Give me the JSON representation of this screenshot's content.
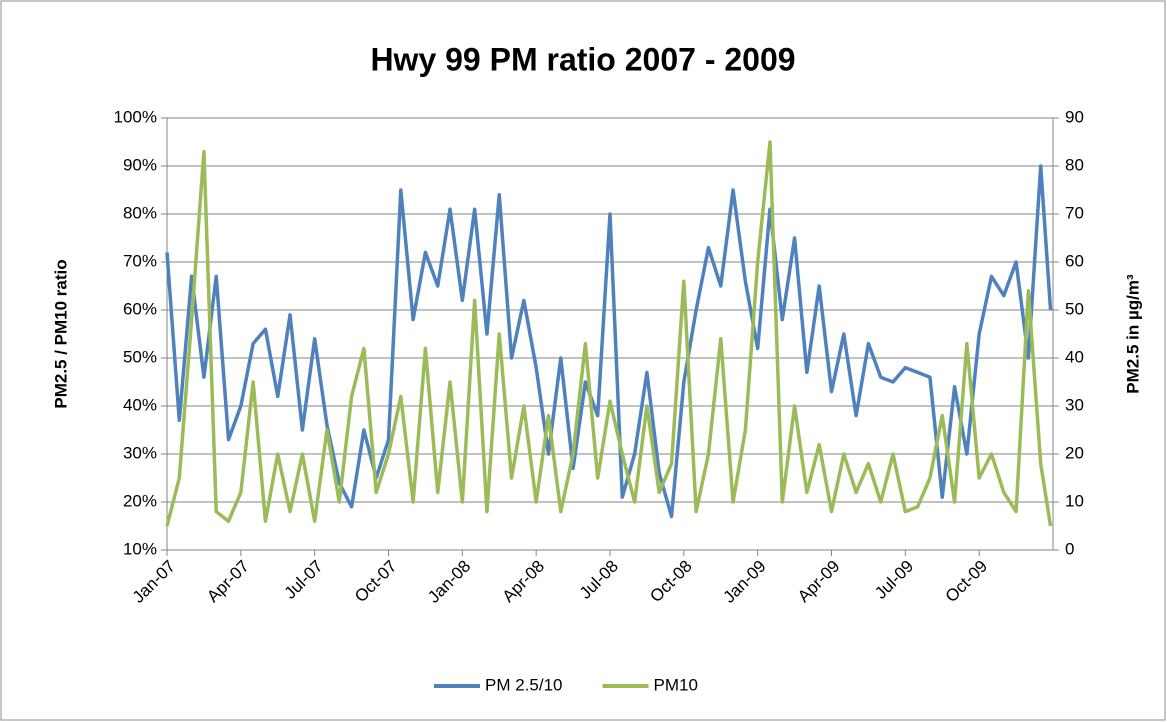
{
  "chart_data": {
    "type": "line",
    "title": "Hwy 99 PM ratio 2007 - 2009",
    "ylabel": "PM2.5 / PM10 ratio",
    "y2label": "PM2.5 in µg/m³",
    "x": [
      0,
      0.5,
      1,
      1.5,
      2,
      2.5,
      3,
      3.5,
      4,
      4.5,
      5,
      5.5,
      6,
      6.5,
      7,
      7.5,
      8,
      8.5,
      9,
      9.5,
      10,
      10.5,
      11,
      11.5,
      12,
      12.5,
      13,
      13.5,
      14,
      14.5,
      15,
      15.5,
      16,
      16.5,
      17,
      17.5,
      18,
      18.5,
      19,
      19.5,
      20,
      20.5,
      21,
      21.5,
      22,
      22.5,
      23,
      23.5,
      24,
      24.5,
      25,
      25.5,
      26,
      26.5,
      27,
      27.5,
      28,
      28.5,
      29,
      29.5,
      30,
      30.5,
      31,
      31.5,
      32,
      32.5,
      33,
      33.5,
      34,
      34.5,
      35,
      35.5,
      35.9
    ],
    "xlim": [
      0,
      36
    ],
    "xticks": [
      {
        "value": 0,
        "label": "Jan-07"
      },
      {
        "value": 3,
        "label": "Apr-07"
      },
      {
        "value": 6,
        "label": "Jul-07"
      },
      {
        "value": 9,
        "label": "Oct-07"
      },
      {
        "value": 12,
        "label": "Jan-08"
      },
      {
        "value": 15,
        "label": "Apr-08"
      },
      {
        "value": 18,
        "label": "Jul-08"
      },
      {
        "value": 21,
        "label": "Oct-08"
      },
      {
        "value": 24,
        "label": "Jan-09"
      },
      {
        "value": 27,
        "label": "Apr-09"
      },
      {
        "value": 30,
        "label": "Jul-09"
      },
      {
        "value": 33,
        "label": "Oct-09"
      }
    ],
    "ylim": [
      10,
      100
    ],
    "yticks": [
      {
        "value": 10,
        "label": "10%"
      },
      {
        "value": 20,
        "label": "20%"
      },
      {
        "value": 30,
        "label": "30%"
      },
      {
        "value": 40,
        "label": "40%"
      },
      {
        "value": 50,
        "label": "50%"
      },
      {
        "value": 60,
        "label": "60%"
      },
      {
        "value": 70,
        "label": "70%"
      },
      {
        "value": 80,
        "label": "80%"
      },
      {
        "value": 90,
        "label": "90%"
      },
      {
        "value": 100,
        "label": "100%"
      }
    ],
    "y2lim": [
      0,
      90
    ],
    "y2ticks": [
      0,
      10,
      20,
      30,
      40,
      50,
      60,
      70,
      80,
      90
    ],
    "grid": true,
    "legend": "bottom",
    "series": [
      {
        "name": "PM 2.5/10",
        "color": "#4f81bd",
        "values": [
          72,
          37,
          67,
          46,
          67,
          33,
          40,
          53,
          56,
          42,
          59,
          35,
          54,
          36,
          24,
          19,
          35,
          25,
          33,
          85,
          58,
          72,
          65,
          81,
          62,
          81,
          55,
          84,
          50,
          62,
          48,
          30,
          50,
          27,
          45,
          38,
          80,
          21,
          30,
          47,
          26,
          17,
          45,
          60,
          73,
          65,
          85,
          66,
          52,
          81,
          58,
          75,
          47,
          65,
          43,
          55,
          38,
          53,
          46,
          45,
          48,
          47,
          46,
          21,
          44,
          30,
          55,
          67,
          63,
          70,
          50,
          90,
          60
        ]
      },
      {
        "name": "PM10",
        "color": "#9bbb59",
        "axis": "y2",
        "values": [
          5,
          15,
          48,
          83,
          8,
          6,
          12,
          35,
          6,
          20,
          8,
          20,
          6,
          25,
          10,
          32,
          42,
          12,
          20,
          32,
          10,
          42,
          12,
          35,
          10,
          52,
          8,
          45,
          15,
          30,
          10,
          28,
          8,
          20,
          43,
          15,
          31,
          20,
          10,
          30,
          12,
          18,
          56,
          8,
          20,
          44,
          10,
          25,
          60,
          85,
          10,
          30,
          12,
          22,
          8,
          20,
          12,
          18,
          10,
          20,
          8,
          9,
          15,
          28,
          10,
          43,
          15,
          20,
          12,
          8,
          54,
          18,
          5
        ]
      }
    ]
  }
}
